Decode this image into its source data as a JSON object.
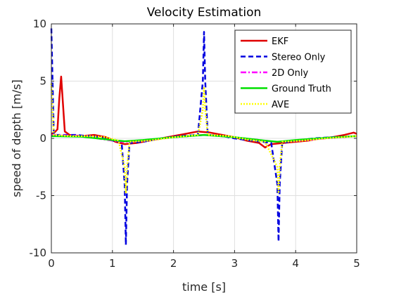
{
  "chart_data": {
    "type": "line",
    "title": "Velocity Estimation",
    "xlabel": "time [s]",
    "ylabel": "speed of depth [m/s]",
    "xlim": [
      0,
      5
    ],
    "ylim": [
      -10,
      10
    ],
    "xticks": [
      "0",
      "1",
      "2",
      "3",
      "4",
      "5"
    ],
    "yticks": [
      "10",
      "5",
      "0",
      "-5",
      "-10"
    ],
    "grid": true,
    "legend_position": "top-right",
    "series": [
      {
        "name": "EKF",
        "color": "#e00000",
        "style": "solid",
        "points": [
          [
            0,
            0.4
          ],
          [
            0.05,
            0.5
          ],
          [
            0.1,
            0.8
          ],
          [
            0.13,
            3.5
          ],
          [
            0.16,
            5.4
          ],
          [
            0.19,
            3.0
          ],
          [
            0.22,
            0.6
          ],
          [
            0.3,
            0.3
          ],
          [
            0.5,
            0.2
          ],
          [
            0.7,
            0.3
          ],
          [
            0.9,
            0.1
          ],
          [
            1.05,
            -0.3
          ],
          [
            1.2,
            -0.5
          ],
          [
            1.4,
            -0.4
          ],
          [
            1.6,
            -0.2
          ],
          [
            1.8,
            0.0
          ],
          [
            2.0,
            0.2
          ],
          [
            2.2,
            0.4
          ],
          [
            2.4,
            0.6
          ],
          [
            2.6,
            0.5
          ],
          [
            2.8,
            0.3
          ],
          [
            3.0,
            0.1
          ],
          [
            3.2,
            -0.2
          ],
          [
            3.4,
            -0.4
          ],
          [
            3.5,
            -0.8
          ],
          [
            3.6,
            -0.5
          ],
          [
            3.8,
            -0.4
          ],
          [
            4.0,
            -0.3
          ],
          [
            4.2,
            -0.2
          ],
          [
            4.4,
            0.0
          ],
          [
            4.6,
            0.1
          ],
          [
            4.8,
            0.3
          ],
          [
            4.95,
            0.5
          ],
          [
            5.0,
            0.4
          ]
        ]
      },
      {
        "name": "Stereo Only",
        "color": "#0000e0",
        "style": "dashed",
        "points": [
          [
            0,
            9.6
          ],
          [
            0.02,
            5.0
          ],
          [
            0.04,
            0.3
          ],
          [
            0.2,
            0.3
          ],
          [
            0.4,
            0.3
          ],
          [
            0.6,
            0.2
          ],
          [
            0.8,
            0.1
          ],
          [
            1.0,
            -0.2
          ],
          [
            1.15,
            -0.3
          ],
          [
            1.2,
            -4.0
          ],
          [
            1.22,
            -9.3
          ],
          [
            1.24,
            -4.0
          ],
          [
            1.28,
            -0.4
          ],
          [
            1.5,
            -0.3
          ],
          [
            1.8,
            0.0
          ],
          [
            2.1,
            0.2
          ],
          [
            2.4,
            0.3
          ],
          [
            2.48,
            5.0
          ],
          [
            2.5,
            9.3
          ],
          [
            2.52,
            5.0
          ],
          [
            2.56,
            0.3
          ],
          [
            2.8,
            0.2
          ],
          [
            3.0,
            0.0
          ],
          [
            3.3,
            -0.2
          ],
          [
            3.6,
            -0.4
          ],
          [
            3.7,
            -4.0
          ],
          [
            3.72,
            -9.0
          ],
          [
            3.74,
            -4.0
          ],
          [
            3.78,
            -0.4
          ],
          [
            4.0,
            -0.2
          ],
          [
            4.3,
            0.0
          ],
          [
            4.6,
            0.1
          ],
          [
            5.0,
            0.2
          ]
        ]
      },
      {
        "name": "2D Only",
        "color": "#ff00ff",
        "style": "dashdot",
        "points": [
          [
            0,
            0.3
          ],
          [
            0.5,
            0.2
          ],
          [
            1.0,
            -0.2
          ],
          [
            1.2,
            -0.3
          ],
          [
            1.5,
            -0.2
          ],
          [
            2.0,
            0.1
          ],
          [
            2.5,
            0.3
          ],
          [
            3.0,
            0.1
          ],
          [
            3.5,
            -0.2
          ],
          [
            3.7,
            -0.3
          ],
          [
            4.0,
            -0.2
          ],
          [
            4.5,
            0.0
          ],
          [
            5.0,
            0.2
          ]
        ]
      },
      {
        "name": "Ground Truth",
        "color": "#00e000",
        "style": "solid",
        "points": [
          [
            0,
            0.2
          ],
          [
            0.5,
            0.15
          ],
          [
            1.0,
            -0.15
          ],
          [
            1.2,
            -0.25
          ],
          [
            1.5,
            -0.15
          ],
          [
            2.0,
            0.1
          ],
          [
            2.5,
            0.3
          ],
          [
            3.0,
            0.1
          ],
          [
            3.5,
            -0.2
          ],
          [
            3.7,
            -0.3
          ],
          [
            4.0,
            -0.15
          ],
          [
            4.5,
            0.05
          ],
          [
            5.0,
            0.2
          ]
        ]
      },
      {
        "name": "AVE",
        "color": "#ffff00",
        "style": "dotted",
        "points": [
          [
            0,
            4.8
          ],
          [
            0.02,
            2.5
          ],
          [
            0.04,
            0.3
          ],
          [
            0.3,
            0.2
          ],
          [
            0.6,
            0.2
          ],
          [
            0.9,
            0.1
          ],
          [
            1.1,
            -0.2
          ],
          [
            1.2,
            -2.5
          ],
          [
            1.22,
            -4.8
          ],
          [
            1.24,
            -2.5
          ],
          [
            1.28,
            -0.3
          ],
          [
            1.6,
            -0.2
          ],
          [
            2.0,
            0.1
          ],
          [
            2.4,
            0.3
          ],
          [
            2.48,
            2.5
          ],
          [
            2.5,
            4.5
          ],
          [
            2.52,
            2.5
          ],
          [
            2.56,
            0.3
          ],
          [
            2.9,
            0.2
          ],
          [
            3.2,
            -0.1
          ],
          [
            3.5,
            -0.3
          ],
          [
            3.7,
            -2.5
          ],
          [
            3.72,
            -4.8
          ],
          [
            3.74,
            -2.5
          ],
          [
            3.78,
            -0.3
          ],
          [
            4.1,
            -0.2
          ],
          [
            4.5,
            0.0
          ],
          [
            5.0,
            0.2
          ]
        ]
      }
    ]
  }
}
